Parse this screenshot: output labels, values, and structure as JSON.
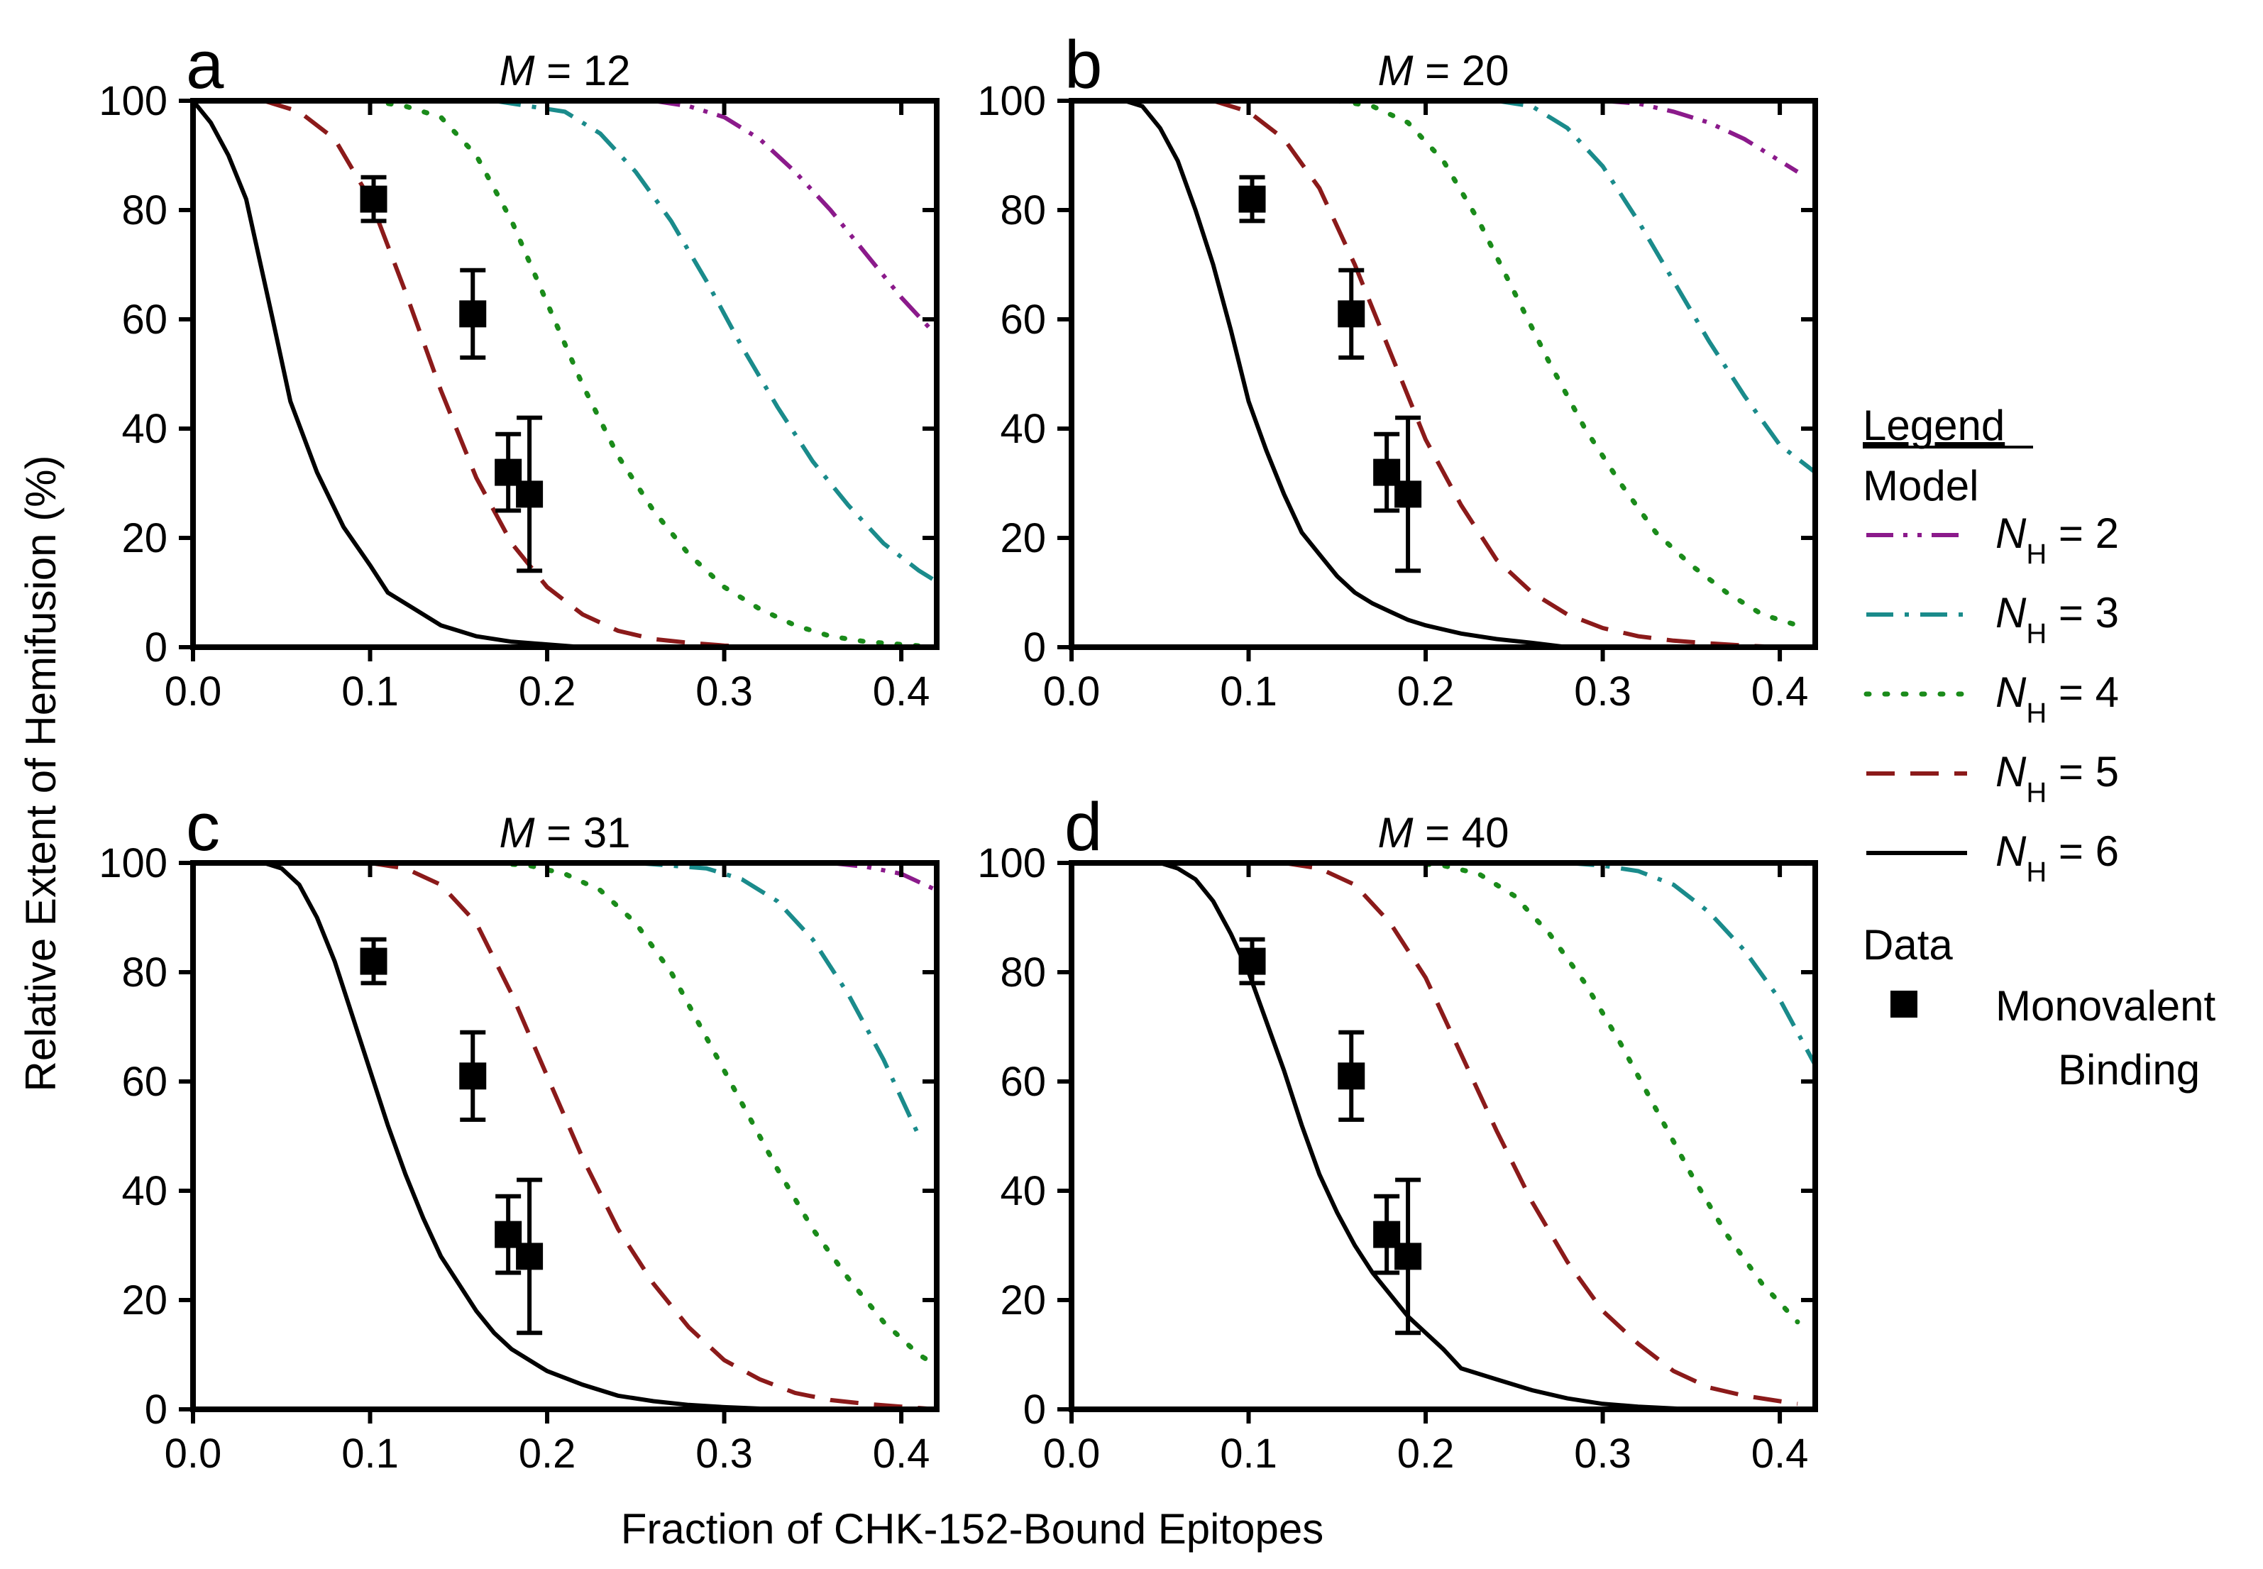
{
  "chart_data": {
    "type": "line",
    "ylabel": "Relative Extent of Hemifusion (%)",
    "xlabel": "Fraction of CHK-152-Bound Epitopes",
    "xlim": [
      0,
      0.42
    ],
    "ylim": [
      0,
      100
    ],
    "x_ticks": [
      "0.0",
      "0.1",
      "0.2",
      "0.3",
      "0.4"
    ],
    "x_tick_values": [
      0,
      0.1,
      0.2,
      0.3,
      0.4
    ],
    "y_ticks": [
      "0",
      "20",
      "40",
      "60",
      "80",
      "100"
    ],
    "y_tick_values": [
      0,
      20,
      40,
      60,
      80,
      100
    ],
    "legend": {
      "title": "Legend",
      "model_label": "Model",
      "data_label": "Data",
      "series_prefix": "N",
      "series_subscript": "H",
      "series_entries": [
        {
          "value": "= 2",
          "style": "dash-dot-dot",
          "color": "#8B1A8B"
        },
        {
          "value": "= 3",
          "style": "dash-dot",
          "color": "#1A8B8B"
        },
        {
          "value": "= 4",
          "style": "dotted",
          "color": "#1A8B1A"
        },
        {
          "value": "= 5",
          "style": "dashed",
          "color": "#8B1A1A"
        },
        {
          "value": "= 6",
          "style": "solid",
          "color": "#000000"
        }
      ],
      "data_entry": [
        "Monovalent",
        "Binding"
      ]
    },
    "data_points": [
      {
        "x": 0.102,
        "y": 82,
        "xerr": 0.004,
        "yerr": 4
      },
      {
        "x": 0.158,
        "y": 61,
        "xerr": 0.006,
        "yerr": 8
      },
      {
        "x": 0.178,
        "y": 32,
        "xerr": 0.006,
        "yerr": 7
      },
      {
        "x": 0.19,
        "y": 28,
        "xerr": 0.006,
        "yerr": 14
      }
    ],
    "panels": [
      {
        "letter": "a",
        "title_var": "M",
        "title_value": "= 12",
        "series": [
          {
            "name": "NH = 2",
            "x": [
              0.26,
              0.28,
              0.3,
              0.32,
              0.34,
              0.36,
              0.38,
              0.4,
              0.42
            ],
            "y": [
              100,
              99,
              97,
              93,
              87,
              80,
              72,
              64,
              57
            ]
          },
          {
            "name": "NH = 3",
            "x": [
              0.17,
              0.19,
              0.21,
              0.23,
              0.25,
              0.27,
              0.29,
              0.31,
              0.33,
              0.35,
              0.37,
              0.39,
              0.41,
              0.42
            ],
            "y": [
              100,
              99,
              98,
              94,
              87,
              78,
              67,
              55,
              44,
              34,
              26,
              19,
              14,
              12
            ]
          },
          {
            "name": "NH = 4",
            "x": [
              0.1,
              0.12,
              0.14,
              0.16,
              0.18,
              0.2,
              0.22,
              0.24,
              0.26,
              0.28,
              0.3,
              0.32,
              0.34,
              0.36,
              0.38,
              0.4,
              0.42
            ],
            "y": [
              100,
              99,
              97,
              90,
              78,
              63,
              48,
              35,
              25,
              17,
              11,
              7,
              4,
              2,
              1,
              0.5,
              0
            ]
          },
          {
            "name": "NH = 5",
            "x": [
              0.04,
              0.06,
              0.08,
              0.1,
              0.12,
              0.14,
              0.16,
              0.18,
              0.2,
              0.22,
              0.24,
              0.26,
              0.28,
              0.3,
              0.32
            ],
            "y": [
              100,
              98,
              93,
              82,
              65,
              47,
              31,
              19,
              11,
              6,
              3,
              1.5,
              0.8,
              0.3,
              0
            ]
          },
          {
            "name": "NH = 6",
            "x": [
              0.0,
              0.01,
              0.02,
              0.03,
              0.045,
              0.055,
              0.07,
              0.085,
              0.1,
              0.11,
              0.125,
              0.14,
              0.16,
              0.18,
              0.2,
              0.22
            ],
            "y": [
              100,
              96,
              90,
              82,
              60,
              45,
              32,
              22,
              15,
              10,
              7,
              4,
              2,
              1,
              0.5,
              0
            ]
          }
        ]
      },
      {
        "letter": "b",
        "title_var": "M",
        "title_value": "= 20",
        "series": [
          {
            "name": "NH = 2",
            "x": [
              0.3,
              0.32,
              0.34,
              0.36,
              0.38,
              0.4,
              0.41
            ],
            "y": [
              100,
              99.5,
              98,
              96,
              93,
              89,
              87
            ]
          },
          {
            "name": "NH = 3",
            "x": [
              0.24,
              0.26,
              0.27,
              0.28,
              0.3,
              0.32,
              0.34,
              0.36,
              0.38,
              0.4,
              0.42
            ],
            "y": [
              100,
              99,
              97,
              95,
              88,
              78,
              67,
              56,
              46,
              37,
              32
            ]
          },
          {
            "name": "NH = 4",
            "x": [
              0.15,
              0.17,
              0.19,
              0.21,
              0.23,
              0.25,
              0.27,
              0.29,
              0.31,
              0.33,
              0.35,
              0.37,
              0.39,
              0.41
            ],
            "y": [
              100,
              99,
              96,
              89,
              78,
              65,
              52,
              40,
              30,
              21,
              15,
              10,
              6,
              4
            ]
          },
          {
            "name": "NH = 5",
            "x": [
              0.08,
              0.1,
              0.12,
              0.14,
              0.16,
              0.18,
              0.2,
              0.22,
              0.24,
              0.26,
              0.28,
              0.3,
              0.32,
              0.34,
              0.36,
              0.38,
              0.4
            ],
            "y": [
              100,
              98,
              93,
              84,
              70,
              54,
              38,
              26,
              16,
              10,
              6,
              3.5,
              2,
              1.2,
              0.7,
              0.3,
              0
            ]
          },
          {
            "name": "NH = 6",
            "x": [
              0.03,
              0.04,
              0.05,
              0.06,
              0.07,
              0.08,
              0.09,
              0.1,
              0.11,
              0.12,
              0.13,
              0.14,
              0.15,
              0.16,
              0.17,
              0.18,
              0.19,
              0.2,
              0.22,
              0.24,
              0.26,
              0.28
            ],
            "y": [
              100,
              99,
              95,
              89,
              80,
              70,
              58,
              45,
              36,
              28,
              21,
              17,
              13,
              10,
              8,
              6.5,
              5,
              4,
              2.5,
              1.5,
              0.8,
              0
            ]
          }
        ]
      },
      {
        "letter": "c",
        "title_var": "M",
        "title_value": "= 31",
        "series": [
          {
            "name": "NH = 2",
            "x": [
              0.36,
              0.38,
              0.4,
              0.42
            ],
            "y": [
              100,
              99.3,
              98,
              95
            ]
          },
          {
            "name": "NH = 3",
            "x": [
              0.25,
              0.27,
              0.29,
              0.31,
              0.33,
              0.35,
              0.37,
              0.39,
              0.41
            ],
            "y": [
              100,
              99.5,
              99,
              97,
              93,
              86,
              76,
              64,
              50
            ]
          },
          {
            "name": "NH = 4",
            "x": [
              0.17,
              0.19,
              0.21,
              0.23,
              0.25,
              0.27,
              0.29,
              0.31,
              0.33,
              0.35,
              0.37,
              0.39,
              0.41,
              0.42
            ],
            "y": [
              100,
              99.5,
              98,
              95,
              89,
              80,
              68,
              56,
              44,
              33,
              24,
              16,
              10,
              8
            ]
          },
          {
            "name": "NH = 5",
            "x": [
              0.1,
              0.12,
              0.14,
              0.16,
              0.18,
              0.2,
              0.22,
              0.24,
              0.26,
              0.28,
              0.3,
              0.32,
              0.34,
              0.36,
              0.38,
              0.4,
              0.42
            ],
            "y": [
              100,
              99,
              96,
              89,
              76,
              61,
              46,
              33,
              23,
              15,
              9,
              5.5,
              3,
              1.7,
              1,
              0.5,
              0
            ]
          },
          {
            "name": "NH = 6",
            "x": [
              0.04,
              0.05,
              0.06,
              0.07,
              0.08,
              0.09,
              0.1,
              0.11,
              0.12,
              0.13,
              0.14,
              0.15,
              0.16,
              0.17,
              0.18,
              0.2,
              0.22,
              0.24,
              0.26,
              0.28,
              0.3,
              0.33
            ],
            "y": [
              100,
              99,
              96,
              90,
              82,
              72,
              62,
              52,
              43,
              35,
              28,
              23,
              18,
              14,
              11,
              7,
              4.5,
              2.5,
              1.5,
              0.8,
              0.4,
              0
            ]
          }
        ]
      },
      {
        "letter": "d",
        "title_var": "M",
        "title_value": "= 40",
        "series": [
          {
            "name": "NH = 2",
            "x": [
              0.4,
              0.42
            ],
            "y": [
              100,
              99.8
            ]
          },
          {
            "name": "NH = 3",
            "x": [
              0.28,
              0.3,
              0.32,
              0.34,
              0.36,
              0.38,
              0.4,
              0.42
            ],
            "y": [
              100,
              99.5,
              98.5,
              96,
              91,
              84,
              75,
              63
            ]
          },
          {
            "name": "NH = 4",
            "x": [
              0.19,
              0.21,
              0.23,
              0.25,
              0.27,
              0.29,
              0.31,
              0.33,
              0.35,
              0.37,
              0.39,
              0.41
            ],
            "y": [
              100,
              99.5,
              98,
              94,
              87,
              78,
              67,
              55,
              43,
              32,
              23,
              16
            ]
          },
          {
            "name": "NH = 5",
            "x": [
              0.12,
              0.14,
              0.16,
              0.18,
              0.2,
              0.22,
              0.24,
              0.26,
              0.28,
              0.3,
              0.32,
              0.34,
              0.36,
              0.38,
              0.4,
              0.41
            ],
            "y": [
              100,
              99,
              96,
              89,
              79,
              65,
              51,
              38,
              27,
              18,
              12,
              7,
              4,
              2.5,
              1.5,
              1
            ]
          },
          {
            "name": "NH = 6",
            "x": [
              0.05,
              0.06,
              0.07,
              0.08,
              0.09,
              0.1,
              0.11,
              0.12,
              0.13,
              0.14,
              0.15,
              0.16,
              0.17,
              0.18,
              0.19,
              0.2,
              0.21,
              0.22,
              0.24,
              0.26,
              0.28,
              0.3,
              0.32,
              0.35
            ],
            "y": [
              100,
              99,
              97,
              93,
              87,
              80,
              71,
              62,
              52,
              43,
              36,
              30,
              25,
              21,
              17,
              14,
              11,
              7.5,
              5.5,
              3.5,
              2,
              1,
              0.5,
              0
            ]
          }
        ]
      }
    ]
  }
}
